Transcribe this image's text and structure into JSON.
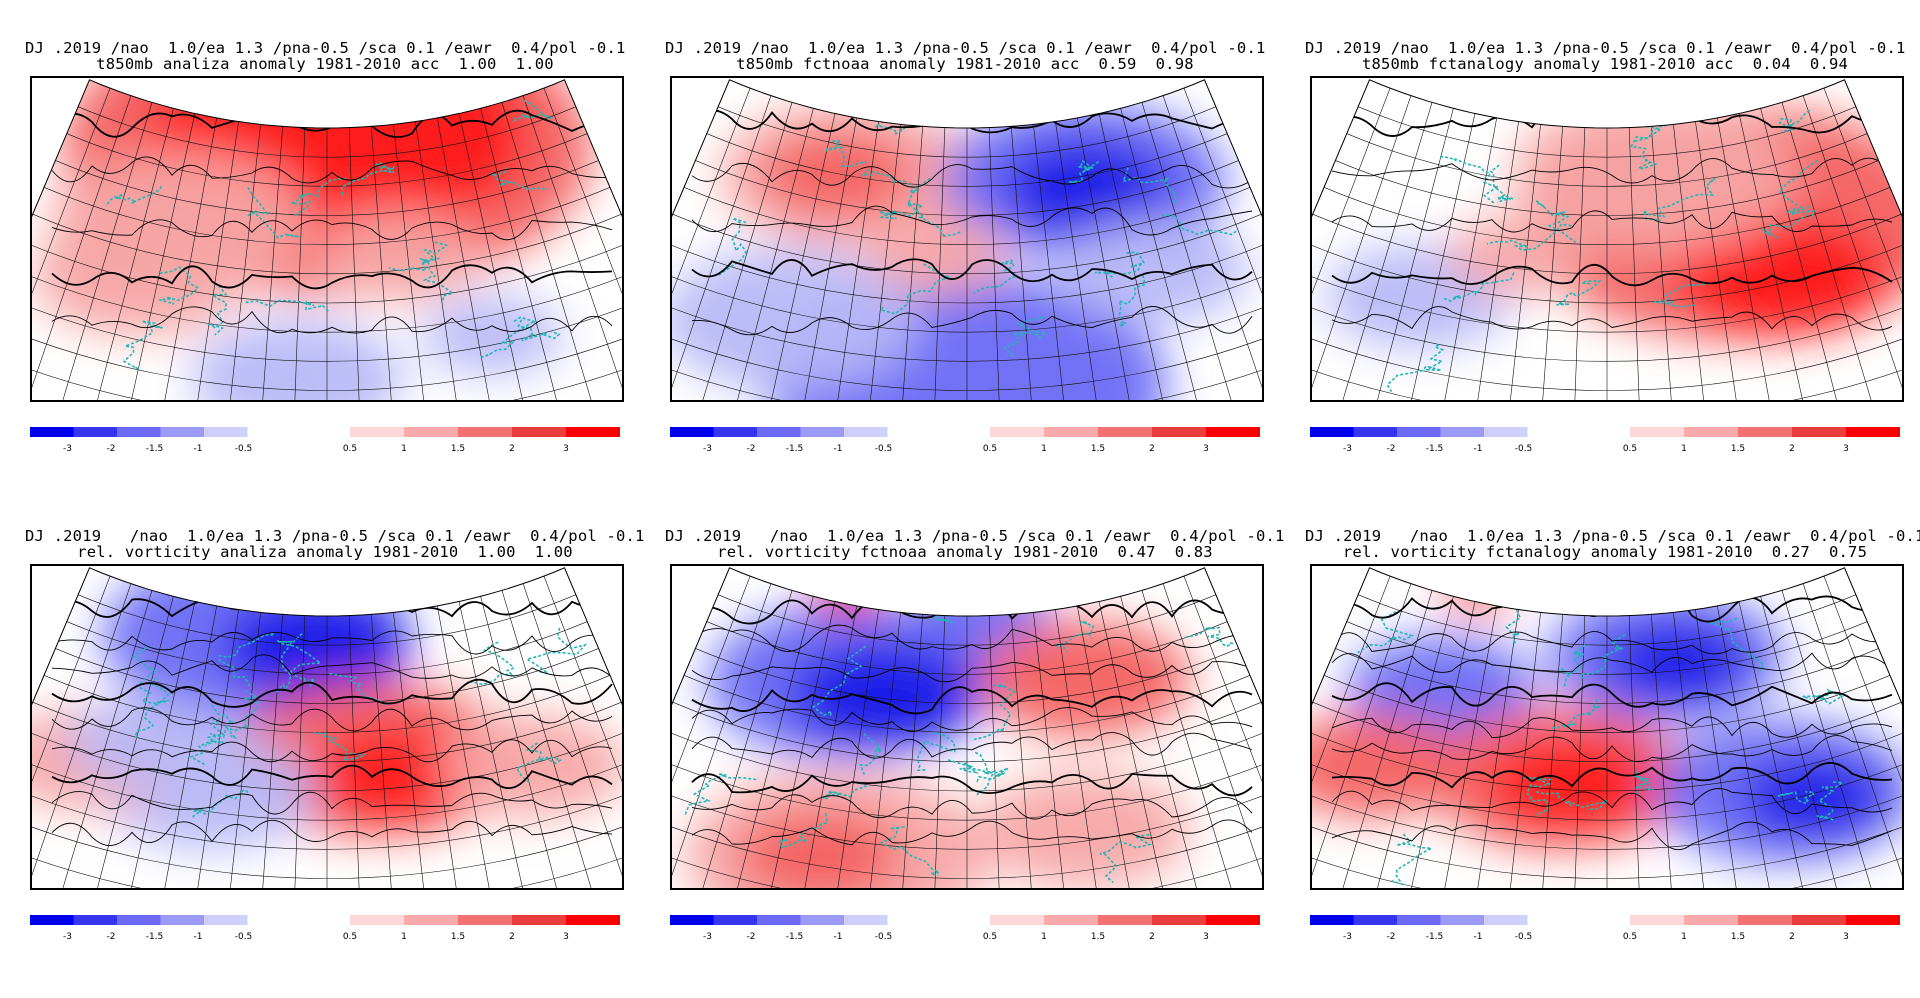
{
  "panels": [
    {
      "line1": "DJ .2019 /nao  1.0/ea 1.3 /pna-0.5 /sca 0.1 /eawr  0.4/pol -0.1",
      "line2": "t850mb analiza anomaly 1981-2010 acc  1.00  1.00"
    },
    {
      "line1": "DJ .2019 /nao  1.0/ea 1.3 /pna-0.5 /sca 0.1 /eawr  0.4/pol -0.1",
      "line2": "t850mb fctnoaa anomaly 1981-2010 acc  0.59  0.98"
    },
    {
      "line1": "DJ .2019 /nao  1.0/ea 1.3 /pna-0.5 /sca 0.1 /eawr  0.4/pol -0.1",
      "line2": "t850mb fctanalogy anomaly 1981-2010 acc  0.04  0.94"
    },
    {
      "line1": "DJ .2019   /nao  1.0/ea 1.3 /pna-0.5 /sca 0.1 /eawr  0.4/pol -0.1",
      "line2": "rel. vorticity analiza anomaly 1981-2010  1.00  1.00"
    },
    {
      "line1": "DJ .2019   /nao  1.0/ea 1.3 /pna-0.5 /sca 0.1 /eawr  0.4/pol -0.1",
      "line2": "rel. vorticity fctnoaa anomaly 1981-2010  0.47  0.83"
    },
    {
      "line1": "DJ .2019   /nao  1.0/ea 1.3 /pna-0.5 /sca 0.1 /eawr  0.4/pol -0.1",
      "line2": "rel. vorticity fctanalogy anomaly 1981-2010  0.27  0.75"
    }
  ],
  "colorbar": {
    "neg_colors": [
      "#0000ee",
      "#3535f2",
      "#6a6af5",
      "#9b9bf7",
      "#cfcffb"
    ],
    "pos_colors": [
      "#fcd8d8",
      "#f8a9a9",
      "#f27272",
      "#ec3d3d",
      "#ff0000"
    ],
    "neg_labels": [
      "-3",
      "-2",
      "-1.5",
      "-1",
      "-0.5"
    ],
    "pos_labels": [
      "0.5",
      "1",
      "1.5",
      "2",
      "3"
    ]
  },
  "coastline_color": "#21b6b6"
}
